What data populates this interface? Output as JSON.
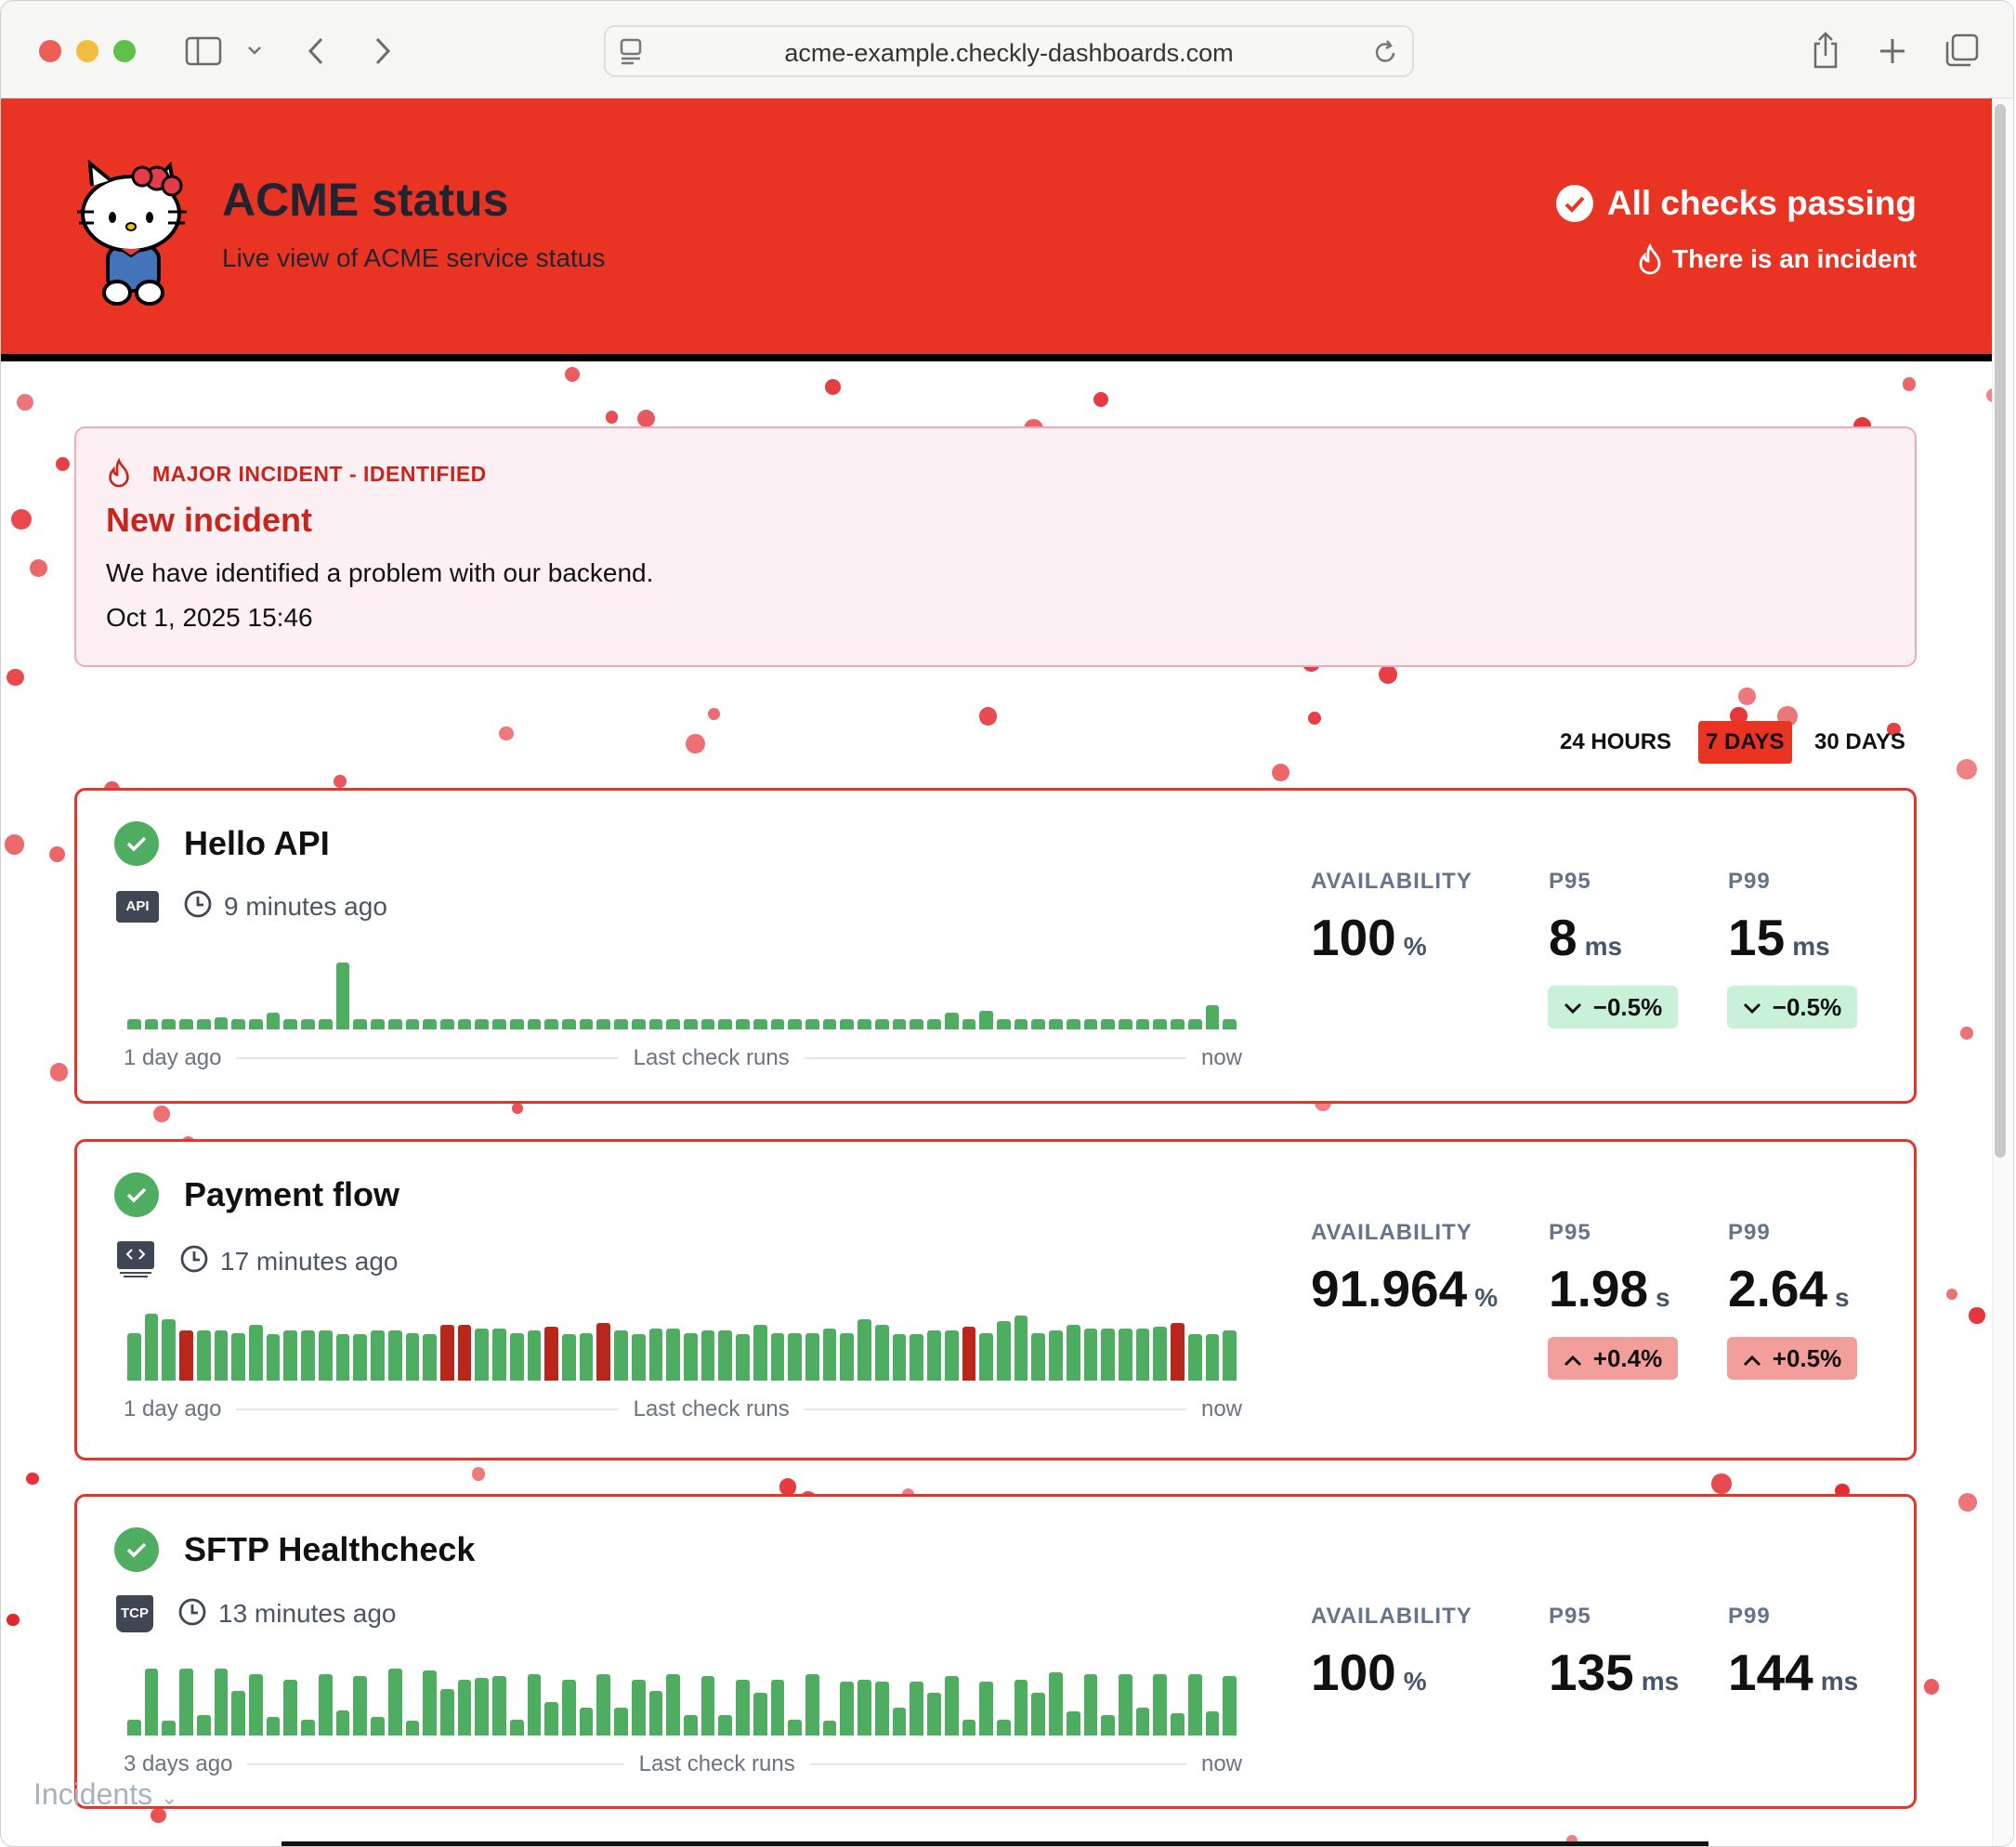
{
  "browser": {
    "url": "acme-example.checkly-dashboards.com",
    "icons": [
      "sidebar-icon",
      "chevron-down-icon",
      "back-icon",
      "forward-icon",
      "reader-icon",
      "reload-icon",
      "share-icon",
      "new-tab-icon",
      "tabs-icon"
    ]
  },
  "header": {
    "title": "ACME status",
    "subtitle": "Live view of ACME service status",
    "status": "All checks passing",
    "incident_link": "There is an incident",
    "color": "#e93424"
  },
  "incident": {
    "label": "MAJOR INCIDENT - IDENTIFIED",
    "title": "New incident",
    "message": "We have identified a problem with our backend.",
    "date": "Oct 1, 2025 15:46"
  },
  "ranges": {
    "items": [
      "24 HOURS",
      "7 DAYS",
      "30 DAYS"
    ],
    "selected": "7 DAYS"
  },
  "checks": [
    {
      "name": "Hello API",
      "type_icon": "api-icon",
      "type_label": "API",
      "last_run": "9 minutes ago",
      "axis_start": "1 day ago",
      "axis_mid": "Last check runs",
      "axis_end": "now",
      "metrics": {
        "availability_label": "AVAILABILITY",
        "availability": "100",
        "availability_unit": "%",
        "p95_label": "P95",
        "p95": "8",
        "p95_unit": "ms",
        "p95_delta": "−0.5%",
        "p95_trend": "down",
        "p99_label": "P99",
        "p99": "15",
        "p99_unit": "ms",
        "p99_delta": "−0.5%",
        "p99_trend": "down"
      },
      "runs": [
        34,
        34,
        34,
        34,
        34,
        40,
        34,
        34,
        53,
        34,
        34,
        34,
        215,
        34,
        34,
        34,
        34,
        34,
        34,
        34,
        34,
        34,
        34,
        34,
        34,
        34,
        34,
        34,
        34,
        34,
        34,
        34,
        34,
        34,
        34,
        34,
        34,
        34,
        34,
        34,
        34,
        34,
        34,
        34,
        34,
        34,
        34,
        53,
        34,
        59,
        34,
        34,
        34,
        34,
        34,
        34,
        34,
        34,
        34,
        34,
        34,
        34,
        77,
        34
      ],
      "failed": []
    },
    {
      "name": "Payment flow",
      "type_icon": "browser-check-icon",
      "type_label": "",
      "last_run": "17 minutes ago",
      "axis_start": "1 day ago",
      "axis_mid": "Last check runs",
      "axis_end": "now",
      "metrics": {
        "availability_label": "AVAILABILITY",
        "availability": "91.964",
        "availability_unit": "%",
        "p95_label": "P95",
        "p95": "1.98",
        "p95_unit": "s",
        "p95_delta": "+0.4%",
        "p95_trend": "up",
        "p99_label": "P99",
        "p99": "2.64",
        "p99_unit": "s",
        "p99_delta": "+0.5%",
        "p99_trend": "up"
      },
      "runs": [
        153,
        215,
        196,
        160,
        160,
        160,
        153,
        178,
        148,
        160,
        160,
        160,
        148,
        148,
        160,
        160,
        153,
        148,
        178,
        178,
        166,
        166,
        153,
        160,
        172,
        148,
        153,
        184,
        160,
        148,
        166,
        166,
        153,
        160,
        160,
        148,
        178,
        153,
        153,
        153,
        166,
        153,
        196,
        178,
        148,
        148,
        160,
        160,
        172,
        153,
        190,
        208,
        153,
        160,
        178,
        166,
        166,
        166,
        166,
        172,
        184,
        148,
        148,
        160
      ],
      "failed": [
        3,
        18,
        19,
        24,
        27,
        48,
        60
      ]
    },
    {
      "name": "SFTP Healthcheck",
      "type_icon": "tcp-icon",
      "type_label": "TCP",
      "last_run": "13 minutes ago",
      "axis_start": "3 days ago",
      "axis_mid": "Last check runs",
      "axis_end": "now",
      "metrics": {
        "availability_label": "AVAILABILITY",
        "availability": "100",
        "availability_unit": "%",
        "p95_label": "P95",
        "p95": "135",
        "p95_unit": "ms",
        "p99_label": "P99",
        "p99": "144",
        "p99_unit": "ms"
      },
      "runs": [
        52,
        215,
        47,
        215,
        65,
        215,
        142,
        197,
        59,
        179,
        52,
        197,
        82,
        190,
        59,
        215,
        47,
        209,
        149,
        179,
        185,
        190,
        52,
        197,
        107,
        179,
        89,
        197,
        89,
        179,
        142,
        197,
        65,
        190,
        65,
        179,
        137,
        179,
        52,
        197,
        47,
        172,
        179,
        172,
        89,
        172,
        137,
        190,
        52,
        172,
        52,
        179,
        137,
        202,
        77,
        197,
        65,
        197,
        89,
        197,
        72,
        197,
        77,
        190
      ],
      "failed": []
    }
  ],
  "colors": {
    "pass": "#4fad62",
    "fail": "#b8261c",
    "delta_good": "#c8f2d8",
    "delta_bad": "#f29f9c",
    "card_border": "#e5352a"
  },
  "footer": {
    "incidents_label": "Incidents"
  }
}
